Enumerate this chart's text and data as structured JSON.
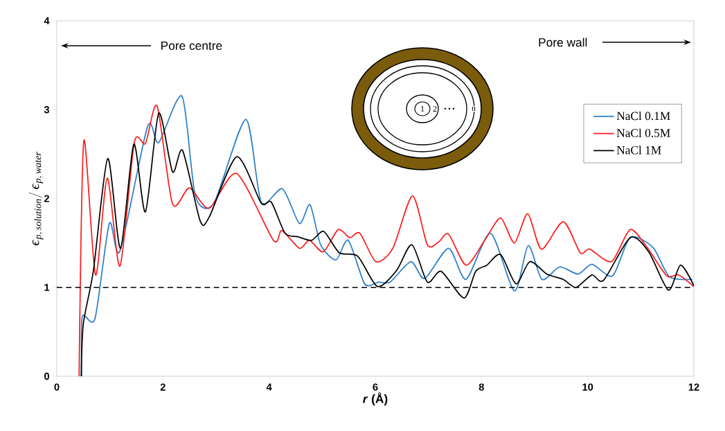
{
  "chart_data": {
    "type": "line",
    "xlabel": "*r* (Å)",
    "ylabel": "\\varepsilon_{p,\\, solution}/\\,\\varepsilon_{p,\\, water}",
    "xlim": [
      0,
      12
    ],
    "ylim": [
      0,
      4
    ],
    "xticks": [
      0,
      2,
      4,
      6,
      8,
      10,
      12
    ],
    "yticks": [
      0,
      1,
      2,
      3,
      4
    ],
    "legend": "top right",
    "marker": "none",
    "line_style": "solid",
    "annotations": [
      "Pore centre",
      "Pore wall",
      "1",
      "2",
      "n"
    ],
    "ref_lines": [
      {
        "axis": "y",
        "value": 1,
        "color": "#000000",
        "line_style": "dashed"
      }
    ],
    "series": [
      {
        "name": "NaCl 0.1M",
        "color": "#2a7fc9",
        "x": [
          0.47,
          0.48,
          0.72,
          0.99,
          1.19,
          1.71,
          1.92,
          2.36,
          2.61,
          2.96,
          3.56,
          3.85,
          4.25,
          4.57,
          4.77,
          4.97,
          5.26,
          5.49,
          5.8,
          6.06,
          6.28,
          6.67,
          6.93,
          7.38,
          7.71,
          8.17,
          8.62,
          8.88,
          9.14,
          9.47,
          9.82,
          10.08,
          10.47,
          10.8,
          11.23,
          11.54,
          11.97
        ],
        "values": [
          0,
          0.67,
          0.65,
          1.72,
          1.41,
          2.81,
          2.63,
          3.15,
          2.03,
          1.95,
          2.89,
          1.96,
          2.11,
          1.72,
          1.93,
          1.48,
          1.31,
          1.53,
          1.04,
          1.06,
          1.06,
          1.29,
          1.1,
          1.44,
          1.09,
          1.61,
          0.96,
          1.47,
          1.09,
          1.23,
          1.15,
          1.26,
          1.13,
          1.56,
          1.45,
          1.12,
          1.09
        ]
      },
      {
        "name": "NaCl 0.5M",
        "color": "#ff1a1a",
        "x": [
          0.42,
          0.51,
          0.73,
          0.95,
          1.19,
          1.46,
          1.67,
          1.89,
          2.18,
          2.5,
          2.87,
          3.39,
          4.08,
          4.24,
          4.57,
          4.76,
          5.02,
          5.3,
          5.52,
          5.71,
          6.01,
          6.33,
          6.7,
          6.98,
          7.19,
          7.38,
          7.71,
          8.06,
          8.36,
          8.62,
          8.87,
          9.13,
          9.54,
          9.86,
          10.04,
          10.45,
          10.8,
          11.13,
          11.49,
          11.71,
          12
        ],
        "values": [
          0,
          2.65,
          1.14,
          2.23,
          1.24,
          2.63,
          2.62,
          3.04,
          1.94,
          2.12,
          1.89,
          2.28,
          1.53,
          1.64,
          1.44,
          1.53,
          1.4,
          1.65,
          1.56,
          1.61,
          1.29,
          1.44,
          2.03,
          1.48,
          1.51,
          1.6,
          1.25,
          1.53,
          1.78,
          1.5,
          1.83,
          1.43,
          1.74,
          1.39,
          1.43,
          1.29,
          1.65,
          1.44,
          1.13,
          1.14,
          1.01
        ]
      },
      {
        "name": "NaCl 1M",
        "color": "#000000",
        "x": [
          0.46,
          0.5,
          0.69,
          0.96,
          1.2,
          1.45,
          1.67,
          1.92,
          2.18,
          2.37,
          2.7,
          2.87,
          3.39,
          3.85,
          4.04,
          4.3,
          4.54,
          4.8,
          5.03,
          5.32,
          5.67,
          6.04,
          6.4,
          6.69,
          6.98,
          7.24,
          7.67,
          7.89,
          8.1,
          8.36,
          8.65,
          8.91,
          9.23,
          9.54,
          9.78,
          10.08,
          10.3,
          10.8,
          11.15,
          11.52,
          11.75,
          12
        ],
        "values": [
          0,
          0.59,
          1.19,
          2.45,
          1.44,
          2.61,
          1.85,
          2.96,
          2.3,
          2.54,
          1.75,
          1.79,
          2.47,
          1.95,
          1.96,
          1.61,
          1.57,
          1.53,
          1.63,
          1.39,
          1.35,
          1.01,
          1.19,
          1.48,
          1.06,
          1.18,
          0.88,
          1.18,
          1.25,
          1.37,
          1.04,
          1.29,
          1.15,
          1.09,
          1.0,
          1.14,
          1.08,
          1.56,
          1.4,
          0.97,
          1.25,
          1.02
        ]
      }
    ]
  }
}
